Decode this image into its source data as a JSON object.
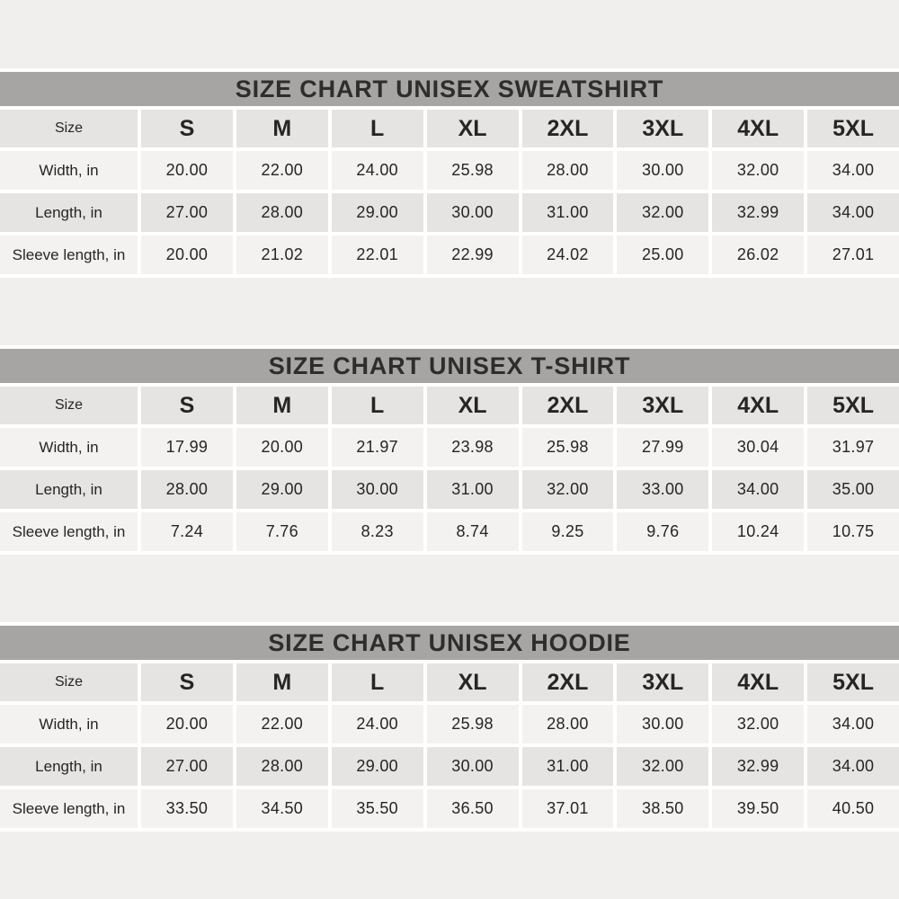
{
  "colors": {
    "page_background": "#f0efed",
    "title_band": "#a6a5a4",
    "row_shade_dark": "#e5e4e2",
    "row_shade_light": "#f3f2f0",
    "cell_gap": "#ffffff",
    "text": "#262523"
  },
  "chart_data": [
    {
      "type": "table",
      "title": "SIZE CHART UNISEX SWEATSHIRT",
      "columns": [
        "Size",
        "S",
        "M",
        "L",
        "XL",
        "2XL",
        "3XL",
        "4XL",
        "5XL"
      ],
      "rows": [
        {
          "label": "Width, in",
          "values": [
            "20.00",
            "22.00",
            "24.00",
            "25.98",
            "28.00",
            "30.00",
            "32.00",
            "34.00"
          ]
        },
        {
          "label": "Length, in",
          "values": [
            "27.00",
            "28.00",
            "29.00",
            "30.00",
            "31.00",
            "32.00",
            "32.99",
            "34.00"
          ]
        },
        {
          "label": "Sleeve length, in",
          "values": [
            "20.00",
            "21.02",
            "22.01",
            "22.99",
            "24.02",
            "25.00",
            "26.02",
            "27.01"
          ]
        }
      ]
    },
    {
      "type": "table",
      "title": "SIZE CHART UNISEX T-SHIRT",
      "columns": [
        "Size",
        "S",
        "M",
        "L",
        "XL",
        "2XL",
        "3XL",
        "4XL",
        "5XL"
      ],
      "rows": [
        {
          "label": "Width, in",
          "values": [
            "17.99",
            "20.00",
            "21.97",
            "23.98",
            "25.98",
            "27.99",
            "30.04",
            "31.97"
          ]
        },
        {
          "label": "Length, in",
          "values": [
            "28.00",
            "29.00",
            "30.00",
            "31.00",
            "32.00",
            "33.00",
            "34.00",
            "35.00"
          ]
        },
        {
          "label": "Sleeve length, in",
          "values": [
            "7.24",
            "7.76",
            "8.23",
            "8.74",
            "9.25",
            "9.76",
            "10.24",
            "10.75"
          ]
        }
      ]
    },
    {
      "type": "table",
      "title": "SIZE CHART UNISEX HOODIE",
      "columns": [
        "Size",
        "S",
        "M",
        "L",
        "XL",
        "2XL",
        "3XL",
        "4XL",
        "5XL"
      ],
      "rows": [
        {
          "label": "Width, in",
          "values": [
            "20.00",
            "22.00",
            "24.00",
            "25.98",
            "28.00",
            "30.00",
            "32.00",
            "34.00"
          ]
        },
        {
          "label": "Length, in",
          "values": [
            "27.00",
            "28.00",
            "29.00",
            "30.00",
            "31.00",
            "32.00",
            "32.99",
            "34.00"
          ]
        },
        {
          "label": "Sleeve length, in",
          "values": [
            "33.50",
            "34.50",
            "35.50",
            "36.50",
            "37.01",
            "38.50",
            "39.50",
            "40.50"
          ]
        }
      ]
    }
  ]
}
